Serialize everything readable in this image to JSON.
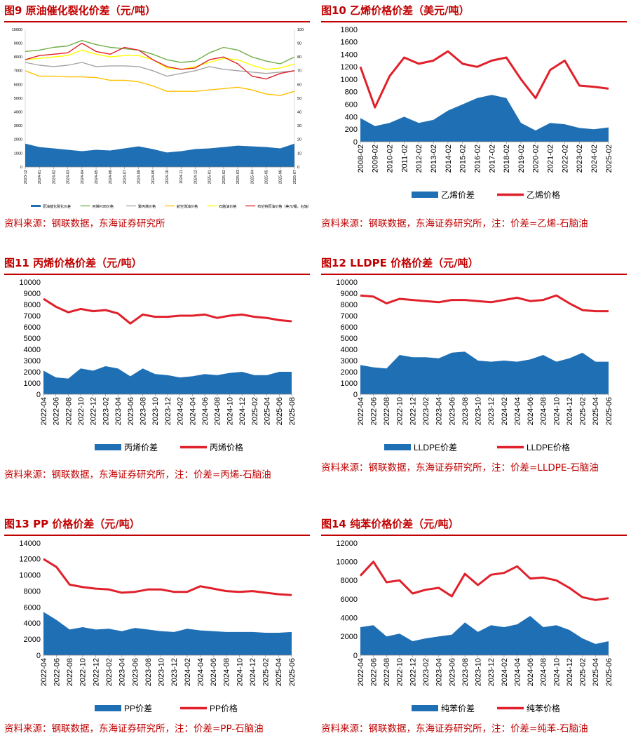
{
  "panels": [
    {
      "title": "图9  原油催化裂化价差（元/吨）",
      "source": "资料来源：钢联数据，东海证券研究所",
      "chart_data": {
        "type": "area",
        "title": "原油催化裂化价差（元/吨）",
        "y_left": {
          "min": 0,
          "max": 10000,
          "ticks": [
            0,
            1000,
            2000,
            3000,
            4000,
            5000,
            6000,
            7000,
            8000,
            9000,
            10000
          ]
        },
        "y_right": {
          "min": 0,
          "max": 100,
          "ticks": [
            0,
            10,
            20,
            30,
            40,
            50,
            60,
            70,
            80,
            90,
            100
          ]
        },
        "categories": [
          "2023-12",
          "2024-01",
          "2024-02",
          "2024-03",
          "2024-04",
          "2024-05",
          "2024-06",
          "2024-07",
          "2024-08",
          "2024-09",
          "2024-10",
          "2024-11",
          "2024-12",
          "2025-01",
          "2025-02",
          "2025-03",
          "2025-04",
          "2025-05",
          "2025-06",
          "2025-07"
        ],
        "series": [
          {
            "name": "原油催化裂化价差",
            "kind": "area",
            "axis": "left",
            "color": "#1f6fb5",
            "values": [
              1700,
              1450,
              1350,
              1250,
              1150,
              1250,
              1200,
              1350,
              1500,
              1300,
              1050,
              1150,
              1300,
              1350,
              1450,
              1550,
              1500,
              1450,
              1350,
              1700
            ]
          },
          {
            "name": "丙烯FOB价格",
            "kind": "line",
            "axis": "left",
            "color": "#70ad47",
            "values": [
              8400,
              8500,
              8700,
              8800,
              9200,
              8900,
              8700,
              8600,
              8500,
              8200,
              7800,
              7600,
              7700,
              8300,
              8700,
              8500,
              8000,
              7700,
              7500,
              8000
            ]
          },
          {
            "name": "聚丙烯价格",
            "kind": "line",
            "axis": "left",
            "color": "#a5a5a5",
            "values": [
              7600,
              7400,
              7300,
              7400,
              7600,
              7300,
              7350,
              7350,
              7300,
              7000,
              6600,
              6800,
              7000,
              7300,
              7100,
              7000,
              6900,
              6800,
              6900,
              7000
            ]
          },
          {
            "name": "航空煤油价格",
            "kind": "line",
            "axis": "left",
            "color": "#ffc000",
            "values": [
              7000,
              6600,
              6600,
              6550,
              6550,
              6500,
              6300,
              6300,
              6200,
              5900,
              5500,
              5500,
              5500,
              5600,
              5700,
              5800,
              5600,
              5300,
              5200,
              5500
            ]
          },
          {
            "name": "石脑油价格",
            "kind": "line",
            "axis": "left",
            "color": "#ffff00",
            "values": [
              7800,
              7900,
              8000,
              8100,
              8500,
              8200,
              8000,
              8100,
              8100,
              7800,
              7200,
              7100,
              7300,
              7600,
              7900,
              7800,
              7400,
              7100,
              7200,
              7500
            ]
          },
          {
            "name": "布伦特原油价格（美元/桶，右轴）",
            "kind": "line",
            "axis": "right",
            "color": "#e0202a",
            "values": [
              78,
              81,
              82,
              83,
              90,
              84,
              82,
              87,
              85,
              78,
              73,
              71,
              72,
              78,
              80,
              75,
              66,
              64,
              68,
              70
            ]
          }
        ],
        "legend": "bottom"
      }
    },
    {
      "title": "图10  乙烯价格价差（美元/吨）",
      "source": "资料来源：钢联数据，东海证券研究所，注：价差=乙烯-石脑油",
      "chart_data": {
        "type": "area",
        "title": "乙烯价格价差（美元/吨）",
        "y_left": {
          "min": 0,
          "max": 1800,
          "ticks": [
            0,
            200,
            400,
            600,
            800,
            1000,
            1200,
            1400,
            1600,
            1800
          ]
        },
        "categories": [
          "2008-02",
          "2009-02",
          "2010-02",
          "2011-02",
          "2012-02",
          "2013-02",
          "2014-02",
          "2015-02",
          "2016-02",
          "2017-02",
          "2018-02",
          "2019-02",
          "2020-02",
          "2021-02",
          "2022-02",
          "2023-02",
          "2024-02",
          "2025-02"
        ],
        "series": [
          {
            "name": "乙烯价差",
            "kind": "area",
            "color": "#1f6fb5",
            "values": [
              380,
              250,
              300,
              400,
              300,
              350,
              500,
              600,
              700,
              750,
              700,
              300,
              180,
              300,
              280,
              220,
              200,
              230
            ]
          },
          {
            "name": "乙烯价格",
            "kind": "line",
            "color": "#e0202a",
            "values": [
              1200,
              550,
              1050,
              1350,
              1250,
              1300,
              1450,
              1250,
              1200,
              1300,
              1350,
              1000,
              700,
              1150,
              1300,
              900,
              880,
              850
            ]
          }
        ],
        "legend": "bottom"
      }
    },
    {
      "title": "图11  丙烯价格价差（元/吨）",
      "source": "资料来源：钢联数据，东海证券研究所，注：价差=丙烯-石脑油",
      "chart_data": {
        "type": "area",
        "title": "丙烯价格价差（元/吨）",
        "y_left": {
          "min": 0,
          "max": 10000,
          "ticks": [
            0,
            1000,
            2000,
            3000,
            4000,
            5000,
            6000,
            7000,
            8000,
            9000,
            10000
          ]
        },
        "categories": [
          "2022-04",
          "2022-06",
          "2022-08",
          "2022-10",
          "2022-12",
          "2023-02",
          "2023-04",
          "2023-06",
          "2023-08",
          "2023-10",
          "2023-12",
          "2024-02",
          "2024-04",
          "2024-06",
          "2024-08",
          "2024-10",
          "2024-12",
          "2025-02",
          "2025-04",
          "2025-06",
          "2025-08"
        ],
        "series": [
          {
            "name": "丙烯价差",
            "kind": "area",
            "color": "#1f6fb5",
            "values": [
              2100,
              1500,
              1400,
              2300,
              2100,
              2500,
              2300,
              1600,
              2300,
              1800,
              1700,
              1500,
              1600,
              1800,
              1700,
              1900,
              2000,
              1700,
              1700,
              2000,
              2000
            ]
          },
          {
            "name": "丙烯价格",
            "kind": "line",
            "color": "#e0202a",
            "values": [
              8500,
              7800,
              7300,
              7600,
              7400,
              7500,
              7200,
              6300,
              7100,
              6900,
              6900,
              7000,
              7000,
              7100,
              6800,
              7000,
              7100,
              6900,
              6800,
              6600,
              6500
            ]
          }
        ],
        "legend": "bottom"
      }
    },
    {
      "title": "图12  LLDPE 价格价差（元/吨）",
      "source": "资料来源：钢联数据，东海证券研究所，注：价差=LLDPE-石脑油",
      "chart_data": {
        "type": "area",
        "title": "LLDPE价格价差（元/吨）",
        "y_left": {
          "min": 0,
          "max": 10000,
          "ticks": [
            0,
            1000,
            2000,
            3000,
            4000,
            5000,
            6000,
            7000,
            8000,
            9000,
            10000
          ]
        },
        "categories": [
          "2022-04",
          "2022-06",
          "2022-08",
          "2022-10",
          "2022-12",
          "2023-02",
          "2023-04",
          "2023-06",
          "2023-08",
          "2023-10",
          "2023-12",
          "2024-02",
          "2024-04",
          "2024-06",
          "2024-08",
          "2024-10",
          "2024-12",
          "2025-02",
          "2025-04",
          "2025-06"
        ],
        "series": [
          {
            "name": "LLDPE价差",
            "kind": "area",
            "color": "#1f6fb5",
            "values": [
              2600,
              2400,
              2300,
              3500,
              3300,
              3300,
              3200,
              3700,
              3800,
              3000,
              2900,
              3000,
              2900,
              3100,
              3500,
              2900,
              3200,
              3700,
              2900,
              2900
            ]
          },
          {
            "name": "LLDPE价格",
            "kind": "line",
            "color": "#e0202a",
            "values": [
              8800,
              8700,
              8100,
              8500,
              8400,
              8300,
              8200,
              8400,
              8400,
              8300,
              8200,
              8400,
              8600,
              8300,
              8400,
              8800,
              8100,
              7500,
              7400,
              7400
            ]
          }
        ],
        "legend": "bottom"
      }
    },
    {
      "title": "图13  PP 价格价差（元/吨）",
      "source": "资料来源：钢联数据，东海证券研究所，注：价差=PP-石脑油",
      "chart_data": {
        "type": "area",
        "title": "PP价格价差（元/吨）",
        "y_left": {
          "min": 0,
          "max": 14000,
          "ticks": [
            0,
            2000,
            4000,
            6000,
            8000,
            10000,
            12000,
            14000
          ]
        },
        "categories": [
          "2022-04",
          "2022-06",
          "2022-08",
          "2022-10",
          "2022-12",
          "2023-02",
          "2023-04",
          "2023-06",
          "2023-08",
          "2023-10",
          "2023-12",
          "2024-02",
          "2024-04",
          "2024-06",
          "2024-08",
          "2024-10",
          "2024-12",
          "2025-02",
          "2025-04",
          "2025-06"
        ],
        "series": [
          {
            "name": "PP价差",
            "kind": "area",
            "color": "#1f6fb5",
            "values": [
              5400,
              4400,
              3200,
              3500,
              3200,
              3300,
              3000,
              3400,
              3200,
              3000,
              2900,
              3300,
              3100,
              3000,
              2900,
              2900,
              2900,
              2800,
              2800,
              2900
            ]
          },
          {
            "name": "PP价格",
            "kind": "line",
            "color": "#e0202a",
            "values": [
              12000,
              11000,
              8800,
              8500,
              8300,
              8200,
              7800,
              7900,
              8200,
              8200,
              7900,
              7900,
              8600,
              8300,
              8000,
              7900,
              8000,
              7800,
              7600,
              7500
            ]
          }
        ],
        "legend": "bottom"
      }
    },
    {
      "title": "图14  纯苯价格价差（元/吨）",
      "source": "资料来源：钢联数据，东海证券研究所，注：价差=纯苯-石脑油",
      "chart_data": {
        "type": "area",
        "title": "纯苯价格价差（元/吨）",
        "y_left": {
          "min": 0,
          "max": 12000,
          "ticks": [
            0,
            2000,
            4000,
            6000,
            8000,
            10000,
            12000
          ]
        },
        "categories": [
          "2022-04",
          "2022-06",
          "2022-08",
          "2022-10",
          "2022-12",
          "2023-02",
          "2023-04",
          "2023-06",
          "2023-08",
          "2023-10",
          "2023-12",
          "2024-02",
          "2024-04",
          "2024-06",
          "2024-08",
          "2024-10",
          "2024-12",
          "2025-02",
          "2025-04",
          "2025-06"
        ],
        "series": [
          {
            "name": "纯苯价差",
            "kind": "area",
            "color": "#1f6fb5",
            "values": [
              3000,
              3200,
              2000,
              2300,
              1500,
              1800,
              2000,
              2200,
              3500,
              2500,
              3200,
              3000,
              3300,
              4200,
              3000,
              3200,
              2700,
              1800,
              1200,
              1500
            ]
          },
          {
            "name": "纯苯价格",
            "kind": "line",
            "color": "#e0202a",
            "values": [
              8500,
              10000,
              7800,
              8000,
              6600,
              7000,
              7200,
              6300,
              8700,
              7500,
              8600,
              8800,
              9500,
              8200,
              8300,
              8000,
              7200,
              6200,
              5900,
              6100
            ]
          }
        ],
        "legend": "bottom"
      }
    }
  ]
}
